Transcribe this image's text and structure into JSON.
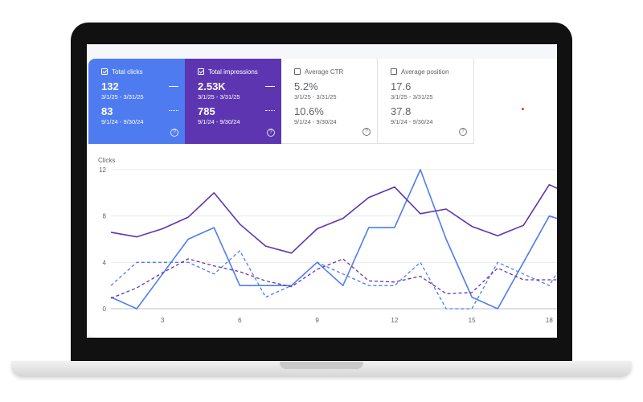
{
  "cards": [
    {
      "label": "Total clicks",
      "checked": true,
      "current_value": "132",
      "current_range": "3/1/25 - 3/31/25",
      "previous_value": "83",
      "previous_range": "9/1/24 - 9/30/24",
      "help": "?"
    },
    {
      "label": "Total impressions",
      "checked": true,
      "current_value": "2.53K",
      "current_range": "3/1/25 - 3/31/25",
      "previous_value": "785",
      "previous_range": "9/1/24 - 9/30/24",
      "help": "?"
    },
    {
      "label": "Average CTR",
      "checked": false,
      "current_value": "5.2%",
      "current_range": "3/1/25 - 3/31/25",
      "previous_value": "10.6%",
      "previous_range": "9/1/24 - 9/30/24",
      "help": "?"
    },
    {
      "label": "Average position",
      "checked": false,
      "current_value": "17.6",
      "current_range": "3/1/25 - 3/31/25",
      "previous_value": "37.8",
      "previous_range": "9/1/24 - 9/30/24",
      "help": "?"
    }
  ],
  "colors": {
    "clicks": "#4e7cf0",
    "impressions": "#5e35b1",
    "grid": "#e8eaed"
  },
  "chart_data": {
    "type": "line",
    "ylabel": "Clicks",
    "ylim": [
      0,
      12
    ],
    "yticks": [
      0,
      4,
      8,
      12
    ],
    "xlim": [
      1,
      18.3
    ],
    "xticks": [
      3,
      6,
      9,
      12,
      15,
      18
    ],
    "grid": true,
    "series": [
      {
        "name": "Total clicks (3/1/25 - 3/31/25)",
        "style": "solid",
        "color": "#4e7cf0",
        "x": [
          1,
          2,
          3,
          4,
          5,
          6,
          7,
          8,
          9,
          10,
          11,
          12,
          13,
          14,
          15,
          16,
          17,
          18,
          18.3
        ],
        "y": [
          1,
          0,
          3,
          6,
          7,
          2,
          2,
          2,
          4,
          2,
          7,
          7,
          12,
          6,
          1,
          0,
          4,
          8,
          7.8
        ]
      },
      {
        "name": "Total clicks (9/1/24 - 9/30/24)",
        "style": "dashed",
        "color": "#4e7cf0",
        "x": [
          1,
          2,
          3,
          4,
          5,
          6,
          7,
          8,
          9,
          10,
          11,
          12,
          13,
          14,
          15,
          16,
          17,
          18,
          18.3
        ],
        "y": [
          2,
          4,
          4,
          4,
          3,
          5,
          1,
          2,
          4,
          3,
          2,
          2,
          4,
          0,
          0,
          4,
          3,
          2,
          3.1
        ]
      },
      {
        "name": "Total impressions (3/1/25 - 3/31/25)",
        "style": "solid",
        "color": "#5e35b1",
        "x": [
          1,
          2,
          3,
          4,
          5,
          6,
          7,
          8,
          9,
          10,
          11,
          12,
          13,
          14,
          15,
          16,
          17,
          18,
          18.3
        ],
        "y": [
          6.6,
          6.2,
          6.9,
          7.9,
          10,
          7.3,
          5.4,
          4.8,
          6.9,
          7.8,
          9.6,
          10.5,
          8.2,
          8.6,
          7.1,
          6.3,
          7.2,
          10.7,
          10.4
        ]
      },
      {
        "name": "Total impressions (9/1/24 - 9/30/24)",
        "style": "dashed",
        "color": "#5e35b1",
        "x": [
          1,
          2,
          3,
          4,
          5,
          6,
          7,
          8,
          9,
          10,
          11,
          12,
          13,
          14,
          15,
          16,
          17,
          18,
          18.3
        ],
        "y": [
          0.9,
          1.8,
          3.1,
          4.3,
          3.7,
          3.2,
          2.4,
          1.9,
          3.4,
          4.3,
          2.4,
          2.3,
          2.8,
          1.3,
          1.4,
          3.5,
          2.5,
          2.5,
          2.5
        ]
      }
    ]
  }
}
